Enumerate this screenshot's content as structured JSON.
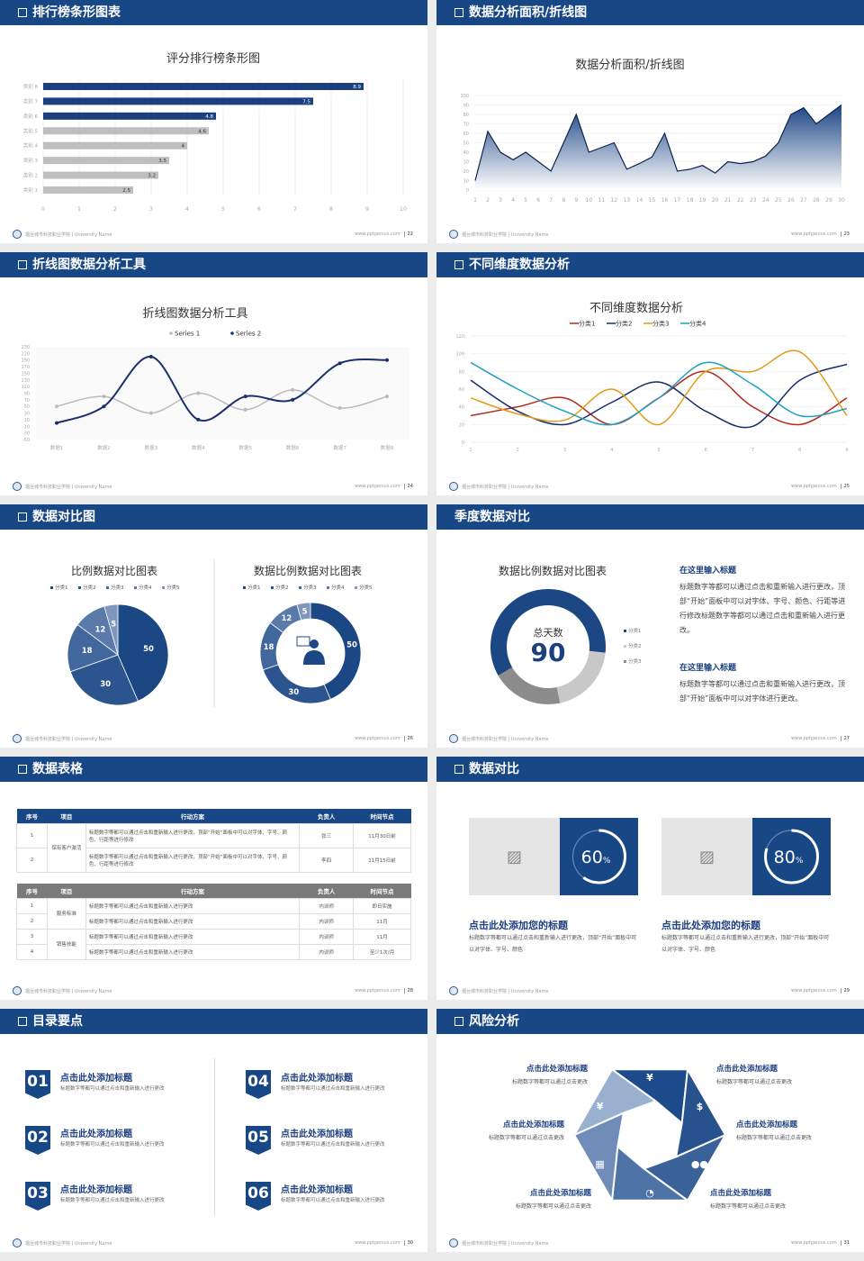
{
  "footer": {
    "school": "烟台城市科技职业学院 | University Name",
    "site": "www.pptgenius.com"
  },
  "colors": {
    "primary": "#184785",
    "accent_gray": "#bfbfbf",
    "background": "#ececec"
  },
  "slides": [
    {
      "header": "排行榜条形图表",
      "page": "22",
      "checkbox_icon": true
    },
    {
      "header": "数据分析面积/折线图",
      "page": "23",
      "checkbox_icon": true
    },
    {
      "header": "折线图数据分析工具",
      "page": "24",
      "checkbox_icon": true
    },
    {
      "header": "不同维度数据分析",
      "page": "25",
      "checkbox_icon": true
    },
    {
      "header": "数据对比图",
      "page": "26",
      "checkbox_icon": true
    },
    {
      "header": "季度数据对比",
      "page": "27",
      "checkbox_icon": false,
      "center_label": "总天数",
      "center_value": "90",
      "blocks": [
        {
          "title": "在这里输入标题",
          "body": "标题数字等都可以通过点击和重新输入进行更改，顶部“开始”面板中可以对字体、字号、颜色、行距等进行修改标题数字等都可以通过点击和重新输入进行更改。"
        },
        {
          "title": "在这里输入标题",
          "body": "标题数字等都可以通过点击和重新输入进行更改，顶部“开始”面板中可以对字体进行更改。"
        }
      ]
    },
    {
      "header": "数据表格",
      "page": "28",
      "checkbox_icon": true,
      "table1": {
        "columns": [
          "序号",
          "项目",
          "行动方案",
          "负责人",
          "时间节点"
        ],
        "group": "保有客户激活",
        "rows": [
          {
            "no": "1",
            "plan": "标题数字等都可以通过点击和重新输入进行更改，顶部“开始”面板中可以对字体、字号、颜色、行距等进行修改",
            "owner": "张三",
            "time": "11月30日前"
          },
          {
            "no": "2",
            "plan": "标题数字等都可以通过点击和重新输入进行更改，顶部“开始”面板中可以对字体、字号、颜色、行距等进行修改",
            "owner": "李四",
            "time": "11月15日前"
          }
        ]
      },
      "table2": {
        "columns": [
          "序号",
          "项目",
          "行动方案",
          "负责人",
          "时间节点"
        ],
        "groups": [
          "服务标准",
          "销售技能"
        ],
        "rows": [
          {
            "no": "1",
            "plan": "标题数字等都可以通过点击和重新输入进行更改",
            "owner": "内训师",
            "time": "即日实施"
          },
          {
            "no": "2",
            "plan": "标题数字等都可以通过点击和重新输入进行更改",
            "owner": "内训师",
            "time": "11月"
          },
          {
            "no": "3",
            "plan": "标题数字等都可以通过点击和重新输入进行更改",
            "owner": "内训师",
            "time": "11月"
          },
          {
            "no": "4",
            "plan": "标题数字等都可以通过点击和重新输入进行更改",
            "owner": "内训师",
            "time": "至少1次/月"
          }
        ]
      }
    },
    {
      "header": "数据对比",
      "page": "29",
      "checkbox_icon": true,
      "cards": [
        {
          "percent": 60,
          "value": "60",
          "unit": "%",
          "title": "点击此处添加您的标题",
          "body": "标题数字等都可以通过点击和重新输入进行更改，顶部“开始”面板中可以对字体、字号、颜色"
        },
        {
          "percent": 80,
          "value": "80",
          "unit": "%",
          "title": "点击此处添加您的标题",
          "body": "标题数字等都可以通过点击和重新输入进行更改，顶部“开始”面板中可以对字体、字号、颜色"
        }
      ]
    },
    {
      "header": "目录要点",
      "page": "30",
      "checkbox_icon": true,
      "items": [
        {
          "num": "01",
          "title": "点击此处添加标题",
          "body": "标题数字等都可以通过点击和重新输入进行更改"
        },
        {
          "num": "02",
          "title": "点击此处添加标题",
          "body": "标题数字等都可以通过点击和重新输入进行更改"
        },
        {
          "num": "03",
          "title": "点击此处添加标题",
          "body": "标题数字等都可以通过点击和重新输入进行更改"
        },
        {
          "num": "04",
          "title": "点击此处添加标题",
          "body": "标题数字等都可以通过点击和重新输入进行更改"
        },
        {
          "num": "05",
          "title": "点击此处添加标题",
          "body": "标题数字等都可以通过点击和重新输入进行更改"
        },
        {
          "num": "06",
          "title": "点击此处添加标题",
          "body": "标题数字等都可以通过点击和重新输入进行更改"
        }
      ]
    },
    {
      "header": "风险分析",
      "page": "31",
      "checkbox_icon": true,
      "segments": [
        {
          "icon": "money-bag-icon",
          "glyph": "¥",
          "title": "点击此处添加标题",
          "body": "标题数字等都可以通过点击更改"
        },
        {
          "icon": "coins-icon",
          "glyph": "$",
          "title": "点击此处添加标题",
          "body": "标题数字等都可以通过点击更改"
        },
        {
          "icon": "people-icon",
          "glyph": "●●",
          "title": "点击此处添加标题",
          "body": "标题数字等都可以通过点击更改"
        },
        {
          "icon": "pie-chart-icon",
          "glyph": "◔",
          "title": "点击此处添加标题",
          "body": "标题数字等都可以通过点击更改"
        },
        {
          "icon": "building-icon",
          "glyph": "▦",
          "title": "点击此处添加标题",
          "body": "标题数字等都可以通过点击更改"
        },
        {
          "icon": "hand-yen-icon",
          "glyph": "¥",
          "title": "点击此处添加标题",
          "body": "标题数字等都可以通过点击更改"
        }
      ]
    }
  ],
  "chart_data": [
    {
      "type": "bar",
      "orientation": "horizontal",
      "title": "评分排行榜条形图",
      "categories": [
        "类别 1",
        "类别 2",
        "类别 3",
        "类别 4",
        "类别 5",
        "类别 6",
        "类别 7",
        "类别 8"
      ],
      "values": [
        2.5,
        3.2,
        3.5,
        4,
        4.6,
        4.8,
        7.5,
        8.9
      ],
      "value_labels": [
        "2.5",
        "3.2",
        "3.5",
        "4",
        "4.6",
        "4.8",
        "7.5",
        "8.9"
      ],
      "xlim": [
        0,
        10
      ],
      "xticks": [
        "0",
        "1",
        "2",
        "3",
        "4",
        "5",
        "6",
        "7",
        "8",
        "9",
        "10"
      ],
      "highlight_color": "#1b3f7f",
      "base_color": "#bfbfbf",
      "highlighted": [
        "类别 6",
        "类别 7",
        "类别 8"
      ],
      "grid": true
    },
    {
      "type": "area",
      "title": "数据分析面积/折线图",
      "x": [
        "1",
        "2",
        "3",
        "4",
        "5",
        "6",
        "7",
        "8",
        "9",
        "10",
        "11",
        "12",
        "13",
        "14",
        "15",
        "16",
        "17",
        "18",
        "19",
        "20",
        "21",
        "22",
        "23",
        "24",
        "25",
        "26",
        "27",
        "28",
        "29",
        "30"
      ],
      "values": [
        10,
        62,
        40,
        32,
        40,
        30,
        20,
        50,
        80,
        40,
        45,
        50,
        22,
        28,
        35,
        60,
        20,
        22,
        26,
        18,
        30,
        28,
        30,
        36,
        50,
        80,
        87,
        70,
        80,
        90
      ],
      "ylim": [
        0,
        100
      ],
      "yticks": [
        "0",
        "10",
        "20",
        "30",
        "40",
        "50",
        "60",
        "70",
        "80",
        "90",
        "100"
      ],
      "color": "#1c4585"
    },
    {
      "type": "line",
      "smooth": true,
      "title": "折线图数据分析工具",
      "categories": [
        "数据1",
        "数据2",
        "数据3",
        "数据4",
        "数据5",
        "数据6",
        "数据7",
        "数据8"
      ],
      "series": [
        {
          "name": "Series 1",
          "values": [
            50,
            80,
            30,
            90,
            40,
            100,
            45,
            80
          ],
          "color": "#bbbbbb"
        },
        {
          "name": "Series 2",
          "values": [
            0,
            50,
            200,
            10,
            80,
            70,
            180,
            190
          ],
          "color": "#1b2f6e"
        }
      ],
      "ylim": [
        -50,
        230
      ],
      "yticks": [
        "230",
        "210",
        "190",
        "170",
        "150",
        "130",
        "110",
        "90",
        "70",
        "50",
        "30",
        "10",
        "-10",
        "-30",
        "-50"
      ],
      "legend": "top"
    },
    {
      "type": "line",
      "smooth": true,
      "title": "不同维度数据分析",
      "x": [
        "1",
        "2",
        "3",
        "4",
        "5",
        "6",
        "7",
        "8",
        "9"
      ],
      "series": [
        {
          "name": "分类1",
          "values": [
            30,
            40,
            50,
            20,
            50,
            80,
            40,
            20,
            50
          ],
          "color": "#b22a1e"
        },
        {
          "name": "分类2",
          "values": [
            70,
            35,
            20,
            45,
            68,
            35,
            18,
            70,
            88
          ],
          "color": "#142c6b"
        },
        {
          "name": "分类3",
          "values": [
            50,
            32,
            25,
            60,
            20,
            80,
            80,
            102,
            30
          ],
          "color": "#e29a16"
        },
        {
          "name": "分类4",
          "values": [
            90,
            60,
            35,
            20,
            50,
            90,
            65,
            30,
            38
          ],
          "color": "#1ea2c4"
        }
      ],
      "ylim": [
        0,
        120
      ],
      "yticks": [
        "0",
        "20",
        "40",
        "60",
        "80",
        "100",
        "120"
      ],
      "legend": "top"
    },
    {
      "type": "pie",
      "title": "比例数据对比图表",
      "categories": [
        "分类1",
        "分类2",
        "分类3",
        "分类4",
        "分类5"
      ],
      "values": [
        50,
        30,
        18,
        12,
        5
      ],
      "value_labels": [
        "50",
        "30",
        "18",
        "12",
        "5"
      ],
      "colors": [
        "#1b4785",
        "#2c5590",
        "#41679c",
        "#5a7ba9",
        "#7f97bd"
      ],
      "legend": "top"
    },
    {
      "type": "pie",
      "donut": true,
      "title": "数据比例数据对比图表",
      "categories": [
        "分类1",
        "分类2",
        "分类3",
        "分类4",
        "分类5"
      ],
      "values": [
        50,
        30,
        18,
        12,
        5
      ],
      "value_labels": [
        "50",
        "30",
        "18",
        "12",
        "5"
      ],
      "colors": [
        "#1b4785",
        "#2c5590",
        "#41679c",
        "#5a7ba9",
        "#7f97bd"
      ],
      "legend": "top",
      "center_icon": "customer-service-icon"
    },
    {
      "type": "pie",
      "donut": true,
      "title": "数据比例数据对比图表",
      "categories": [
        "分类1",
        "分类2",
        "分类3"
      ],
      "values": [
        60,
        20,
        20
      ],
      "colors": [
        "#1b4785",
        "#c8c8c8",
        "#8c8c8c"
      ],
      "legend": "right"
    }
  ]
}
